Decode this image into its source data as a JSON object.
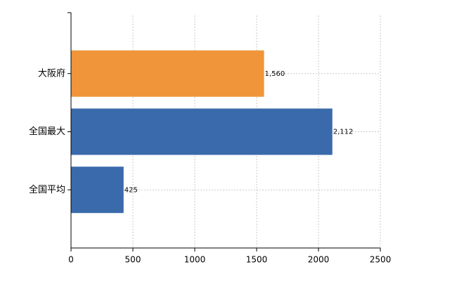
{
  "chart_data": {
    "type": "hbar",
    "categories": [
      "大阪府",
      "全国最大",
      "全国平均"
    ],
    "values": [
      1560,
      2112,
      425
    ],
    "value_labels": [
      "1,560",
      "2,112",
      "425"
    ],
    "colors": [
      "#f0953a",
      "#3a6aab",
      "#3a6aab"
    ],
    "xlim": [
      0,
      2500
    ],
    "xticks": [
      0,
      500,
      1000,
      1500,
      2000,
      2500
    ],
    "grid": true
  }
}
